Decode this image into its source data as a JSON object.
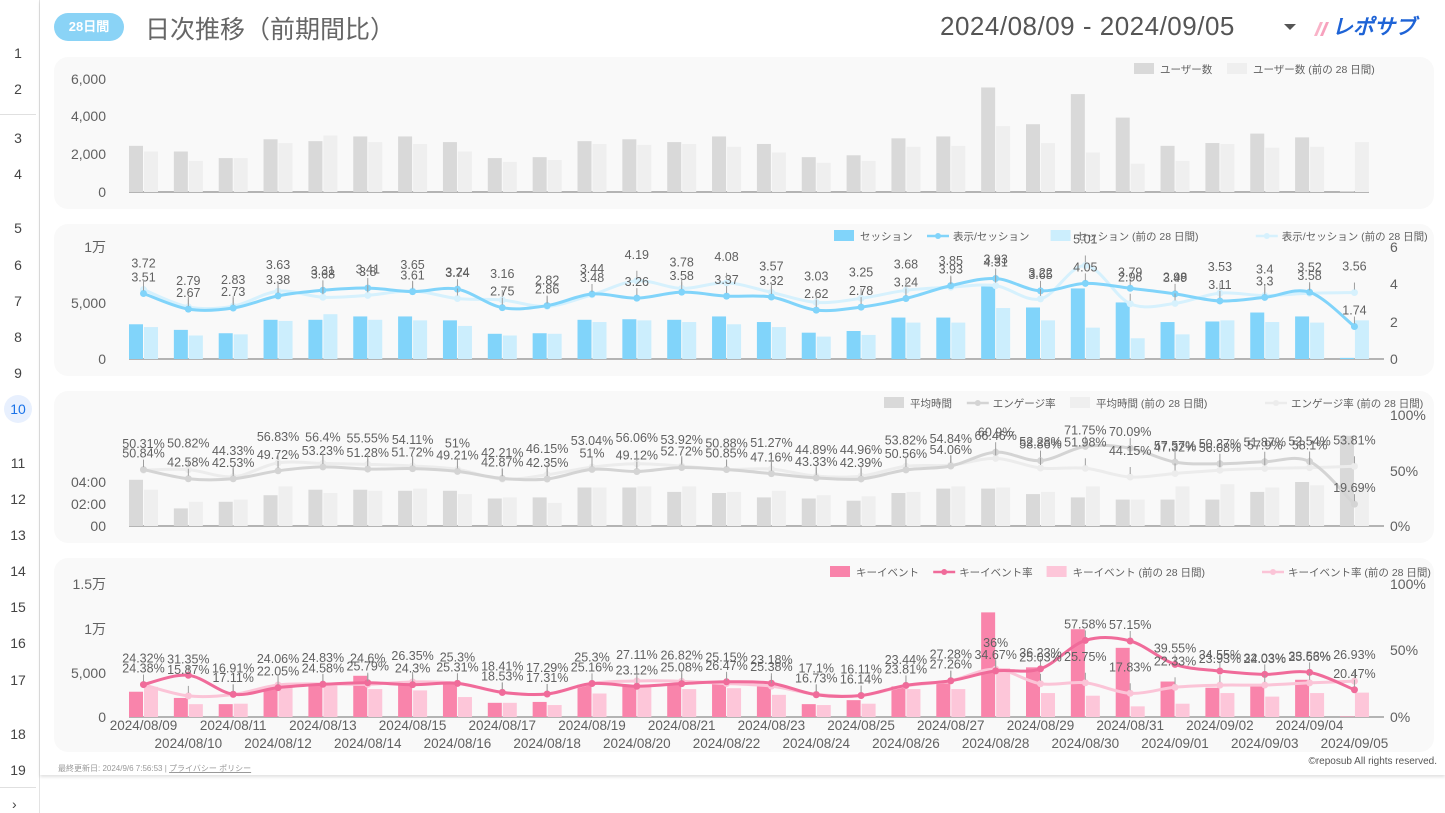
{
  "rail": {
    "rows": [
      "1",
      "2",
      "3",
      "4",
      "5",
      "6",
      "7",
      "8",
      "9",
      "10",
      "11",
      "12",
      "13",
      "14",
      "15",
      "16",
      "17",
      "18",
      "19"
    ],
    "active": "10"
  },
  "header": {
    "badge": "28日間",
    "title": "日次推移（前期間比）",
    "date_range": "2024/08/09 - 2024/09/05",
    "logo_text": "レポサブ"
  },
  "footer": {
    "updated": "最終更新日: 2024/9/6 7:56:53",
    "separator": "|",
    "privacy": "プライバシー ポリシー",
    "copyright": "©reposub All rights reserved."
  },
  "colors": {
    "badge": "#8ad3f6",
    "gray_cur": "#d9d9d9",
    "gray_prev": "#efefef",
    "blue_cur": "#81d4fa",
    "blue_prev": "#cceefd",
    "pink_cur": "#f984ab",
    "pink_prev": "#fdc6d9",
    "card_bg": "#f9f9f9"
  },
  "chart_data": [
    {
      "type": "bar",
      "id": "users",
      "categories": [
        "2024/08/09",
        "2024/08/10",
        "2024/08/11",
        "2024/08/12",
        "2024/08/13",
        "2024/08/14",
        "2024/08/15",
        "2024/08/16",
        "2024/08/17",
        "2024/08/18",
        "2024/08/19",
        "2024/08/20",
        "2024/08/21",
        "2024/08/22",
        "2024/08/23",
        "2024/08/24",
        "2024/08/25",
        "2024/08/26",
        "2024/08/27",
        "2024/08/28",
        "2024/08/29",
        "2024/08/30",
        "2024/08/31",
        "2024/09/01",
        "2024/09/02",
        "2024/09/03",
        "2024/09/04",
        "2024/09/05"
      ],
      "series": [
        {
          "name": "ユーザー数",
          "values": [
            2450,
            2150,
            1800,
            2800,
            2700,
            2950,
            2950,
            2650,
            1800,
            1850,
            2700,
            2800,
            2650,
            2950,
            2550,
            1850,
            1950,
            2850,
            2950,
            5550,
            3600,
            5200,
            3950,
            2450,
            2600,
            3100,
            2900,
            50
          ]
        },
        {
          "name": "ユーザー数 (前の 28 日間)",
          "values": [
            2150,
            1650,
            1800,
            2600,
            3000,
            2650,
            2550,
            2150,
            1600,
            1700,
            2550,
            2500,
            2550,
            2400,
            2100,
            1550,
            1650,
            2400,
            2450,
            3500,
            2600,
            2100,
            1500,
            1650,
            2550,
            2350,
            2400,
            2650
          ]
        }
      ],
      "ylim": [
        0,
        6000
      ],
      "yticks": [
        "0",
        "2,000",
        "4,000",
        "6,000"
      ],
      "legend": "top-right"
    },
    {
      "type": "bar",
      "id": "sessions",
      "series": [
        {
          "name": "セッション",
          "kind": "bar",
          "axis": "left",
          "values": [
            3100,
            2600,
            2300,
            3500,
            3500,
            3800,
            3800,
            3450,
            2250,
            2300,
            3500,
            3550,
            3500,
            3800,
            3300,
            2350,
            2500,
            3700,
            3700,
            6600,
            4600,
            6300,
            5050,
            3300,
            3350,
            4150,
            3800,
            100
          ]
        },
        {
          "name": "表示/セッション",
          "kind": "line",
          "axis": "right",
          "values": [
            3.51,
            2.67,
            2.73,
            3.38,
            3.68,
            3.8,
            3.61,
            3.74,
            2.75,
            2.86,
            3.48,
            3.26,
            3.58,
            3.37,
            3.32,
            2.62,
            2.78,
            3.24,
            3.93,
            4.31,
            3.65,
            4.05,
            3.79,
            3.49,
            3.11,
            3.3,
            3.58,
            1.74
          ]
        },
        {
          "name": "セッション (前の 28 日間)",
          "kind": "bar",
          "axis": "left",
          "values": [
            2850,
            2100,
            2200,
            3400,
            4000,
            3500,
            3450,
            2950,
            2100,
            2250,
            3300,
            3450,
            3300,
            3100,
            2850,
            2000,
            2150,
            3250,
            3250,
            4550,
            3450,
            2800,
            1850,
            2200,
            3450,
            3300,
            3250,
            3450
          ]
        },
        {
          "name": "表示/セッション (前の 28 日間)",
          "kind": "line",
          "axis": "right",
          "values": [
            3.72,
            2.79,
            2.83,
            3.63,
            3.31,
            3.41,
            3.65,
            3.24,
            3.16,
            2.82,
            3.44,
            4.19,
            3.78,
            4.08,
            3.57,
            3.03,
            3.25,
            3.68,
            3.85,
            3.93,
            3.22,
            5.01,
            2.96,
            2.98,
            3.53,
            3.4,
            3.52,
            3.56
          ]
        }
      ],
      "ylim": [
        0,
        10000
      ],
      "yticks": [
        "0",
        "5,000",
        "1万"
      ],
      "y2lim": [
        0,
        6
      ],
      "y2ticks": [
        "0",
        "2",
        "4",
        "6"
      ],
      "legend": "top-right"
    },
    {
      "type": "bar",
      "id": "engagement",
      "series": [
        {
          "name": "平均時間",
          "kind": "bar",
          "axis": "left",
          "values": [
            4.2,
            1.6,
            2.2,
            2.8,
            3.3,
            3.3,
            3.2,
            3.2,
            2.5,
            2.6,
            3.5,
            3.5,
            3.1,
            3.0,
            2.6,
            2.5,
            2.3,
            3.0,
            3.4,
            3.4,
            2.9,
            2.6,
            2.4,
            2.4,
            2.4,
            3.1,
            4.0,
            8.2
          ]
        },
        {
          "name": "エンゲージ率",
          "kind": "line",
          "axis": "right",
          "values": [
            50.84,
            42.58,
            42.53,
            49.72,
            53.23,
            51.28,
            51.72,
            49.21,
            42.87,
            42.35,
            51.0,
            49.12,
            52.72,
            50.85,
            47.16,
            43.33,
            42.39,
            50.56,
            54.06,
            66.46,
            58.86,
            71.75,
            70.09,
            57.57,
            56.08,
            57.9,
            58.1,
            19.69
          ]
        },
        {
          "name": "平均時間 (前の 28 日間)",
          "kind": "bar",
          "axis": "left",
          "values": [
            3.3,
            2.2,
            2.4,
            3.6,
            3.0,
            3.2,
            3.4,
            2.9,
            2.6,
            2.1,
            3.5,
            3.6,
            3.6,
            3.1,
            3.2,
            2.8,
            2.7,
            3.1,
            3.6,
            3.5,
            3.1,
            3.6,
            2.4,
            3.6,
            3.8,
            3.5,
            3.7,
            3.7
          ]
        },
        {
          "name": "エンゲージ率 (前の 28 日間)",
          "kind": "line",
          "axis": "right",
          "values": [
            50.31,
            50.82,
            44.33,
            56.83,
            56.4,
            55.55,
            54.11,
            51.0,
            42.21,
            46.15,
            53.04,
            56.06,
            53.92,
            50.88,
            51.27,
            44.89,
            44.96,
            53.82,
            54.84,
            60.9,
            52.28,
            51.98,
            44.15,
            47.32,
            50.27,
            51.87,
            52.54,
            53.81
          ]
        }
      ],
      "yticks": [
        "00",
        "02:00",
        "04:00"
      ],
      "ylim_minutes": [
        0,
        10
      ],
      "y2lim": [
        0,
        100
      ],
      "y2ticks": [
        "0%",
        "50%",
        "100%"
      ],
      "legend": "top-right"
    },
    {
      "type": "bar",
      "id": "key-events",
      "series": [
        {
          "name": "キーイベント",
          "kind": "bar",
          "axis": "left",
          "values": [
            2850,
            2150,
            1450,
            3100,
            3600,
            4650,
            3800,
            3800,
            1600,
            1700,
            3650,
            3550,
            3700,
            3750,
            3450,
            1450,
            1900,
            3450,
            3800,
            11800,
            5600,
            9900,
            7800,
            4000,
            3300,
            3500,
            4200,
            50
          ]
        },
        {
          "name": "キーイベント率",
          "kind": "line",
          "axis": "right",
          "values": [
            24.38,
            31.35,
            17.11,
            22.05,
            24.58,
            25.79,
            24.3,
            25.31,
            18.53,
            17.31,
            25.16,
            23.12,
            25.08,
            26.47,
            25.38,
            16.73,
            16.14,
            23.81,
            27.26,
            34.67,
            36.23,
            57.58,
            57.15,
            39.55,
            34.55,
            32.03,
            33.53,
            20.47
          ]
        },
        {
          "name": "キーイベント (前の 28 日間)",
          "kind": "bar",
          "axis": "left",
          "values": [
            3400,
            1450,
            1500,
            3600,
            3650,
            3150,
            3000,
            2250,
            1600,
            1350,
            2650,
            3400,
            3150,
            3250,
            2500,
            1350,
            1500,
            3150,
            3150,
            5500,
            2700,
            2400,
            1200,
            1500,
            2700,
            2300,
            2700,
            2750
          ]
        },
        {
          "name": "キーイベント率 (前の 28 日間)",
          "kind": "line",
          "axis": "right",
          "values": [
            24.32,
            15.87,
            16.91,
            24.06,
            24.83,
            24.6,
            26.35,
            25.3,
            18.41,
            17.29,
            25.3,
            27.11,
            26.82,
            25.15,
            23.18,
            17.1,
            16.11,
            23.44,
            27.28,
            36.0,
            25.03,
            25.75,
            17.83,
            22.33,
            23.93,
            24.03,
            25.66,
            26.93
          ]
        }
      ],
      "ylim": [
        0,
        15000
      ],
      "yticks": [
        "0",
        "5,000",
        "1万",
        "1.5万"
      ],
      "y2lim": [
        0,
        100
      ],
      "y2ticks": [
        "0%",
        "50%",
        "100%"
      ],
      "legend": "top-right"
    }
  ]
}
